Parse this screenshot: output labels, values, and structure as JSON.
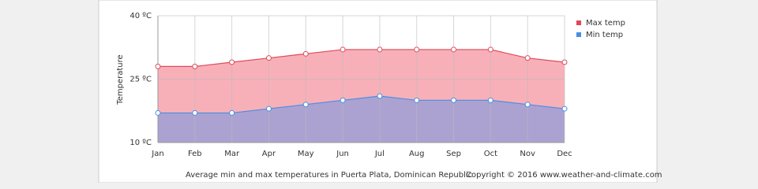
{
  "chart_data": {
    "type": "area",
    "y_label": "Temperature",
    "caption": "Average min and max temperatures in Puerta Plata, Dominican Republic",
    "copyright": "Copyright © 2016 www.weather-and-climate.com",
    "categories": [
      "Jan",
      "Feb",
      "Mar",
      "Apr",
      "May",
      "Jun",
      "Jul",
      "Aug",
      "Sep",
      "Oct",
      "Nov",
      "Dec"
    ],
    "series": [
      {
        "name": "Max temp",
        "color": "#e0485a",
        "fill": "#f8b0b8",
        "values": [
          28,
          28,
          29,
          30,
          31,
          32,
          32,
          32,
          32,
          32,
          30,
          29
        ]
      },
      {
        "name": "Min temp",
        "color": "#4a8ee0",
        "fill": "#aba2d2",
        "values": [
          17,
          17,
          17,
          18,
          19,
          20,
          21,
          20,
          20,
          20,
          19,
          18
        ]
      }
    ],
    "ylim": [
      10,
      40
    ],
    "yticks": [
      {
        "value": 10,
        "label": "10 ºC"
      },
      {
        "value": 25,
        "label": "25 ºC"
      },
      {
        "value": 40,
        "label": "40 ºC"
      }
    ],
    "grid": true,
    "legend": "top-right"
  }
}
